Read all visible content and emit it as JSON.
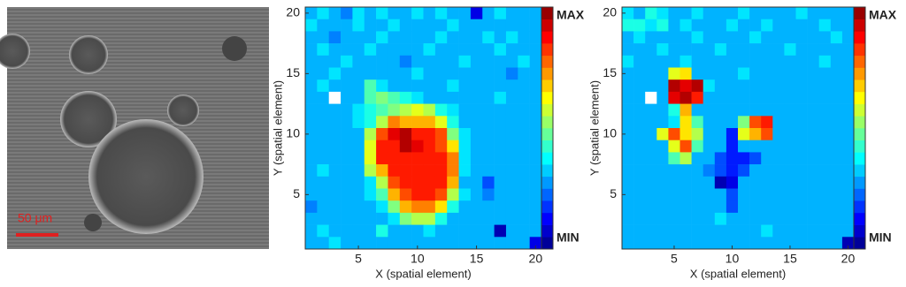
{
  "micrograph": {
    "scale_bar": "50 μm"
  },
  "chart_data": [
    {
      "type": "heatmap",
      "xlabel": "X (spatial element)",
      "ylabel": "Y (spatial element)",
      "x": [
        1,
        2,
        3,
        4,
        5,
        6,
        7,
        8,
        9,
        10,
        11,
        12,
        13,
        14,
        15,
        16,
        17,
        18,
        19,
        20
      ],
      "y": [
        20,
        19,
        18,
        17,
        16,
        15,
        14,
        13,
        12,
        11,
        10,
        9,
        8,
        7,
        6,
        5,
        4,
        3,
        2,
        1
      ],
      "xlim": [
        0.5,
        20.5
      ],
      "ylim": [
        0.5,
        20.5
      ],
      "xticks": [
        5,
        10,
        15,
        20
      ],
      "yticks": [
        5,
        10,
        15,
        20
      ],
      "zlim": [
        0,
        1
      ],
      "zticks": [
        {
          "value": 1,
          "label": "MAX"
        },
        {
          "value": 0,
          "label": "MIN"
        }
      ],
      "colormap": "jet",
      "z": [
        [
          0.3,
          0.35,
          0.3,
          0.25,
          0.35,
          0.3,
          0.35,
          0.3,
          0.3,
          0.35,
          0.3,
          0.35,
          0.3,
          0.3,
          0.1,
          0.3,
          0.35,
          0.3,
          0.3,
          0.3
        ],
        [
          0.35,
          0.3,
          0.3,
          0.3,
          0.35,
          0.3,
          0.3,
          0.35,
          0.3,
          0.3,
          0.3,
          0.3,
          0.35,
          0.3,
          0.3,
          0.3,
          0.3,
          0.3,
          0.3,
          0.3
        ],
        [
          0.3,
          0.3,
          0.25,
          0.3,
          0.3,
          0.3,
          0.35,
          0.3,
          0.3,
          0.3,
          0.3,
          0.35,
          0.3,
          0.3,
          0.3,
          0.35,
          0.3,
          0.35,
          0.3,
          0.3
        ],
        [
          0.3,
          0.35,
          0.3,
          0.3,
          0.3,
          0.35,
          0.3,
          0.3,
          0.3,
          0.3,
          0.35,
          0.3,
          0.3,
          0.3,
          0.3,
          0.3,
          0.35,
          0.3,
          0.3,
          0.3
        ],
        [
          0.3,
          0.3,
          0.3,
          0.35,
          0.3,
          0.3,
          0.3,
          0.3,
          0.25,
          0.3,
          0.3,
          0.3,
          0.3,
          0.35,
          0.3,
          0.3,
          0.3,
          0.3,
          0.35,
          0.3
        ],
        [
          0.3,
          0.3,
          0.35,
          0.3,
          0.3,
          0.3,
          0.3,
          0.3,
          0.3,
          0.35,
          0.3,
          0.3,
          0.3,
          0.3,
          0.3,
          0.3,
          0.3,
          0.25,
          0.3,
          0.3
        ],
        [
          0.3,
          0.35,
          0.3,
          0.3,
          0.3,
          0.45,
          0.35,
          0.3,
          0.3,
          0.3,
          0.3,
          0.3,
          0.35,
          0.3,
          0.3,
          0.3,
          0.3,
          0.3,
          0.3,
          0.3
        ],
        [
          0.3,
          0.3,
          null,
          0.3,
          0.3,
          0.45,
          0.5,
          0.45,
          0.4,
          0.35,
          0.3,
          0.3,
          0.3,
          0.3,
          0.3,
          0.3,
          0.35,
          0.3,
          0.3,
          0.3
        ],
        [
          0.3,
          0.3,
          0.3,
          0.3,
          0.35,
          0.4,
          0.45,
          0.5,
          0.55,
          0.6,
          0.55,
          0.4,
          0.35,
          0.3,
          0.3,
          0.3,
          0.3,
          0.3,
          0.3,
          0.3
        ],
        [
          0.3,
          0.3,
          0.3,
          0.3,
          0.35,
          0.4,
          0.55,
          0.75,
          0.7,
          0.7,
          0.7,
          0.6,
          0.4,
          0.3,
          0.3,
          0.3,
          0.3,
          0.3,
          0.3,
          0.3
        ],
        [
          0.3,
          0.3,
          0.3,
          0.3,
          0.3,
          0.55,
          0.8,
          0.9,
          0.95,
          0.85,
          0.85,
          0.8,
          0.5,
          0.35,
          0.3,
          0.3,
          0.3,
          0.3,
          0.3,
          0.3
        ],
        [
          0.3,
          0.3,
          0.3,
          0.3,
          0.3,
          0.6,
          0.85,
          0.85,
          0.95,
          0.9,
          0.85,
          0.8,
          0.65,
          0.35,
          0.3,
          0.3,
          0.3,
          0.3,
          0.3,
          0.3
        ],
        [
          0.3,
          0.3,
          0.3,
          0.3,
          0.3,
          0.6,
          0.85,
          0.85,
          0.85,
          0.85,
          0.85,
          0.85,
          0.75,
          0.35,
          0.3,
          0.3,
          0.3,
          0.3,
          0.3,
          0.3
        ],
        [
          0.3,
          0.35,
          0.3,
          0.3,
          0.3,
          0.55,
          0.7,
          0.85,
          0.85,
          0.85,
          0.85,
          0.85,
          0.75,
          0.35,
          0.3,
          0.3,
          0.3,
          0.3,
          0.3,
          0.3
        ],
        [
          0.3,
          0.3,
          0.3,
          0.3,
          0.3,
          0.35,
          0.55,
          0.8,
          0.85,
          0.85,
          0.85,
          0.85,
          0.7,
          0.3,
          0.3,
          0.2,
          0.3,
          0.3,
          0.3,
          0.3
        ],
        [
          0.3,
          0.3,
          0.3,
          0.3,
          0.3,
          0.35,
          0.45,
          0.7,
          0.8,
          0.85,
          0.85,
          0.8,
          0.55,
          0.35,
          0.3,
          0.25,
          0.3,
          0.3,
          0.3,
          0.3
        ],
        [
          0.25,
          0.3,
          0.3,
          0.3,
          0.3,
          0.3,
          0.35,
          0.5,
          0.7,
          0.75,
          0.75,
          0.65,
          0.4,
          0.3,
          0.3,
          0.3,
          0.3,
          0.3,
          0.3,
          0.3
        ],
        [
          0.3,
          0.3,
          0.3,
          0.3,
          0.3,
          0.3,
          0.3,
          0.35,
          0.5,
          0.55,
          0.55,
          0.4,
          0.3,
          0.3,
          0.3,
          0.3,
          0.3,
          0.3,
          0.3,
          0.3
        ],
        [
          0.3,
          0.35,
          0.3,
          0.3,
          0.3,
          0.3,
          0.4,
          0.3,
          0.3,
          0.3,
          0.35,
          0.3,
          0.3,
          0.3,
          0.3,
          0.3,
          0.05,
          0.3,
          0.3,
          0.3
        ],
        [
          0.3,
          0.3,
          0.35,
          0.3,
          0.3,
          0.3,
          0.3,
          0.3,
          0.3,
          0.3,
          0.3,
          0.3,
          0.3,
          0.3,
          0.3,
          0.3,
          0.3,
          0.3,
          0.3,
          0.1
        ]
      ]
    },
    {
      "type": "heatmap",
      "xlabel": "X (spatial element)",
      "ylabel": "Y (spatial element)",
      "x": [
        1,
        2,
        3,
        4,
        5,
        6,
        7,
        8,
        9,
        10,
        11,
        12,
        13,
        14,
        15,
        16,
        17,
        18,
        19,
        20
      ],
      "y": [
        20,
        19,
        18,
        17,
        16,
        15,
        14,
        13,
        12,
        11,
        10,
        9,
        8,
        7,
        6,
        5,
        4,
        3,
        2,
        1
      ],
      "xlim": [
        0.5,
        20.5
      ],
      "ylim": [
        0.5,
        20.5
      ],
      "xticks": [
        5,
        10,
        15,
        20
      ],
      "yticks": [
        5,
        10,
        15,
        20
      ],
      "zlim": [
        0,
        1
      ],
      "zticks": [
        {
          "value": 1,
          "label": "MAX"
        },
        {
          "value": 0,
          "label": "MIN"
        }
      ],
      "colormap": "jet",
      "z": [
        [
          0.35,
          0.3,
          0.4,
          0.35,
          0.3,
          0.3,
          0.35,
          0.3,
          0.3,
          0.3,
          0.35,
          0.3,
          0.3,
          0.3,
          0.3,
          0.35,
          0.3,
          0.3,
          0.3,
          0.3
        ],
        [
          0.4,
          0.4,
          0.35,
          0.4,
          0.3,
          0.35,
          0.3,
          0.3,
          0.3,
          0.35,
          0.3,
          0.3,
          0.35,
          0.3,
          0.3,
          0.3,
          0.3,
          0.35,
          0.3,
          0.3
        ],
        [
          0.3,
          0.35,
          0.3,
          0.3,
          0.3,
          0.3,
          0.35,
          0.3,
          0.3,
          0.3,
          0.3,
          0.35,
          0.3,
          0.3,
          0.3,
          0.3,
          0.3,
          0.3,
          0.35,
          0.3
        ],
        [
          0.3,
          0.3,
          0.3,
          0.35,
          0.3,
          0.3,
          0.3,
          0.3,
          0.35,
          0.3,
          0.3,
          0.3,
          0.3,
          0.3,
          0.35,
          0.3,
          0.3,
          0.3,
          0.3,
          0.3
        ],
        [
          0.35,
          0.3,
          0.3,
          0.3,
          0.3,
          0.35,
          0.3,
          0.3,
          0.3,
          0.3,
          0.3,
          0.3,
          0.3,
          0.3,
          0.3,
          0.3,
          0.3,
          0.35,
          0.3,
          0.3
        ],
        [
          0.3,
          0.3,
          0.3,
          0.3,
          0.6,
          0.65,
          0.3,
          0.3,
          0.3,
          0.3,
          0.35,
          0.3,
          0.3,
          0.3,
          0.3,
          0.3,
          0.3,
          0.3,
          0.3,
          0.3
        ],
        [
          0.3,
          0.3,
          0.3,
          0.3,
          0.95,
          0.9,
          0.95,
          0.35,
          0.3,
          0.3,
          0.3,
          0.3,
          0.3,
          0.3,
          0.3,
          0.3,
          0.3,
          0.3,
          0.3,
          0.3
        ],
        [
          0.3,
          0.3,
          null,
          0.3,
          0.9,
          0.95,
          0.85,
          0.3,
          0.3,
          0.3,
          0.3,
          0.3,
          0.3,
          0.3,
          0.3,
          0.3,
          0.3,
          0.3,
          0.3,
          0.3
        ],
        [
          0.3,
          0.3,
          0.3,
          0.3,
          0.4,
          0.7,
          0.3,
          0.3,
          0.3,
          0.3,
          0.3,
          0.3,
          0.3,
          0.3,
          0.3,
          0.3,
          0.3,
          0.3,
          0.3,
          0.3
        ],
        [
          0.3,
          0.3,
          0.3,
          0.3,
          0.35,
          0.65,
          0.45,
          0.3,
          0.3,
          0.3,
          0.5,
          0.8,
          0.85,
          0.3,
          0.3,
          0.3,
          0.3,
          0.3,
          0.3,
          0.3
        ],
        [
          0.3,
          0.3,
          0.3,
          0.6,
          0.8,
          0.65,
          0.55,
          0.3,
          0.3,
          0.15,
          0.6,
          0.7,
          0.8,
          0.3,
          0.3,
          0.3,
          0.3,
          0.3,
          0.3,
          0.3
        ],
        [
          0.3,
          0.3,
          0.3,
          0.3,
          0.6,
          0.8,
          0.45,
          0.3,
          0.3,
          0.15,
          0.3,
          0.3,
          0.3,
          0.3,
          0.3,
          0.3,
          0.3,
          0.3,
          0.3,
          0.3
        ],
        [
          0.3,
          0.3,
          0.3,
          0.3,
          0.45,
          0.55,
          0.3,
          0.3,
          0.2,
          0.15,
          0.15,
          0.2,
          0.3,
          0.3,
          0.3,
          0.3,
          0.3,
          0.3,
          0.3,
          0.3
        ],
        [
          0.3,
          0.3,
          0.3,
          0.3,
          0.3,
          0.3,
          0.3,
          0.25,
          0.2,
          0.15,
          0.2,
          0.3,
          0.3,
          0.3,
          0.3,
          0.3,
          0.3,
          0.3,
          0.3,
          0.3
        ],
        [
          0.3,
          0.3,
          0.3,
          0.3,
          0.3,
          0.3,
          0.3,
          0.3,
          0.05,
          0.1,
          0.3,
          0.3,
          0.3,
          0.3,
          0.3,
          0.3,
          0.3,
          0.3,
          0.3,
          0.3
        ],
        [
          0.3,
          0.3,
          0.3,
          0.3,
          0.3,
          0.3,
          0.3,
          0.3,
          0.3,
          0.2,
          0.3,
          0.3,
          0.3,
          0.3,
          0.3,
          0.3,
          0.3,
          0.3,
          0.3,
          0.3
        ],
        [
          0.3,
          0.3,
          0.3,
          0.3,
          0.3,
          0.3,
          0.3,
          0.3,
          0.3,
          0.2,
          0.3,
          0.3,
          0.3,
          0.3,
          0.3,
          0.3,
          0.3,
          0.3,
          0.3,
          0.3
        ],
        [
          0.3,
          0.3,
          0.3,
          0.3,
          0.3,
          0.3,
          0.3,
          0.3,
          0.35,
          0.3,
          0.3,
          0.3,
          0.3,
          0.3,
          0.3,
          0.3,
          0.3,
          0.3,
          0.3,
          0.3
        ],
        [
          0.3,
          0.3,
          0.3,
          0.3,
          0.3,
          0.3,
          0.3,
          0.3,
          0.3,
          0.3,
          0.3,
          0.3,
          0.35,
          0.3,
          0.3,
          0.3,
          0.3,
          0.3,
          0.3,
          0.3
        ],
        [
          0.3,
          0.3,
          0.3,
          0.3,
          0.3,
          0.3,
          0.3,
          0.3,
          0.3,
          0.3,
          0.3,
          0.3,
          0.3,
          0.3,
          0.3,
          0.3,
          0.3,
          0.3,
          0.3,
          0.05
        ]
      ]
    }
  ]
}
